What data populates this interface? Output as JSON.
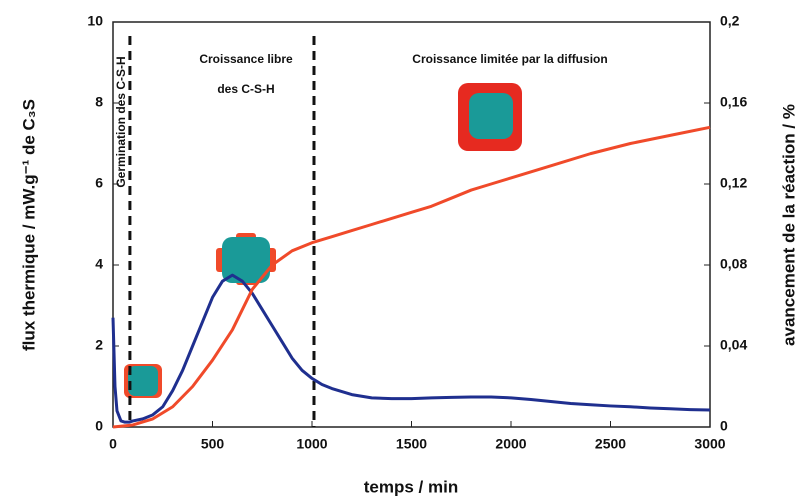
{
  "chart_data": {
    "type": "line",
    "xlabel": "temps / min",
    "ylabel": "flux thermique / mW.g⁻¹ de C₃S",
    "y2label": "avancement de la réaction / %",
    "xlim": [
      0,
      3000
    ],
    "xticks": [
      0,
      500,
      1000,
      1500,
      2000,
      2500,
      3000
    ],
    "ylim": [
      0,
      10
    ],
    "yticks": [
      0,
      2,
      4,
      6,
      8,
      10
    ],
    "y2lim": [
      0,
      0.2
    ],
    "y2ticks": [
      {
        "value": 0,
        "label": "0"
      },
      {
        "value": 0.04,
        "label": "0,04"
      },
      {
        "value": 0.08,
        "label": "0,08"
      },
      {
        "value": 0.12,
        "label": "0,12"
      },
      {
        "value": 0.16,
        "label": "0,16"
      },
      {
        "value": 0.2,
        "label": "0,2"
      }
    ],
    "vlines": [
      85,
      1010
    ],
    "annotations": [
      "Germination des C-S-H",
      "Croissance libre",
      "des C-S-H",
      "Croissance limitée par la diffusion"
    ],
    "series": [
      {
        "color": "#1f2f8f",
        "x": [
          0,
          10,
          20,
          40,
          60,
          80,
          100,
          150,
          200,
          250,
          300,
          350,
          400,
          450,
          500,
          550,
          600,
          650,
          700,
          750,
          800,
          850,
          900,
          950,
          1000,
          1050,
          1100,
          1200,
          1300,
          1400,
          1500,
          1600,
          1700,
          1800,
          1900,
          2000,
          2100,
          2200,
          2300,
          2400,
          2500,
          2600,
          2700,
          2800,
          2900,
          3000
        ],
        "values": [
          2.7,
          1.0,
          0.4,
          0.15,
          0.12,
          0.12,
          0.15,
          0.2,
          0.3,
          0.5,
          0.9,
          1.4,
          2.0,
          2.6,
          3.2,
          3.6,
          3.75,
          3.6,
          3.3,
          2.9,
          2.5,
          2.1,
          1.7,
          1.4,
          1.2,
          1.05,
          0.95,
          0.8,
          0.72,
          0.7,
          0.7,
          0.72,
          0.73,
          0.74,
          0.74,
          0.72,
          0.68,
          0.63,
          0.58,
          0.55,
          0.52,
          0.5,
          0.47,
          0.45,
          0.43,
          0.42
        ]
      },
      {
        "color": "#f04a2a",
        "axis": "y2",
        "x": [
          0,
          100,
          200,
          300,
          400,
          500,
          600,
          700,
          800,
          900,
          1000,
          1100,
          1200,
          1300,
          1400,
          1500,
          1600,
          1700,
          1800,
          1900,
          2000,
          2200,
          2400,
          2600,
          2800,
          3000
        ],
        "values": [
          0,
          0.001,
          0.004,
          0.01,
          0.02,
          0.033,
          0.048,
          0.068,
          0.08,
          0.087,
          0.091,
          0.094,
          0.097,
          0.1,
          0.103,
          0.106,
          0.109,
          0.113,
          0.117,
          0.12,
          0.123,
          0.129,
          0.135,
          0.14,
          0.144,
          0.148
        ]
      }
    ]
  }
}
